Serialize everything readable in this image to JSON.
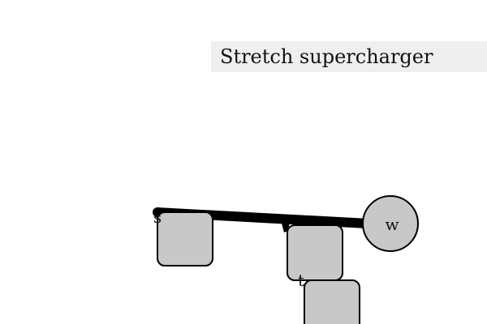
{
  "title": "Stretch supercharger",
  "bodies": {
    "w": "w",
    "s": "s",
    "t": "t"
  },
  "colors": {
    "background": "#ffffff",
    "title_bar": "#efefef",
    "block_fill": "#c8c8c8",
    "wheel_fill": "#c8c8c8",
    "outline": "#000000",
    "rod": "#000000"
  }
}
